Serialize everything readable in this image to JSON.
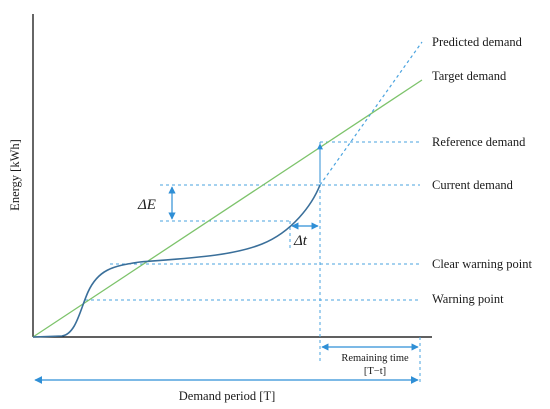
{
  "axes": {
    "y_label": "Energy [kWh]",
    "x_label": "Demand period [T]"
  },
  "labels": {
    "predicted_demand": "Predicted demand",
    "target_demand": "Target demand",
    "reference_demand": "Reference demand",
    "current_demand": "Current demand",
    "clear_warning_point": "Clear warning point",
    "warning_point": "Warning point"
  },
  "annotations": {
    "delta_e": "ΔE",
    "delta_t": "Δt",
    "remaining_time_line1": "Remaining time",
    "remaining_time_line2": "[T−t]"
  },
  "colors": {
    "target_line": "#7dc36b",
    "demand_curve": "#3a6f9a",
    "dashed_guides": "#4aa3df",
    "axis": "#000000"
  }
}
